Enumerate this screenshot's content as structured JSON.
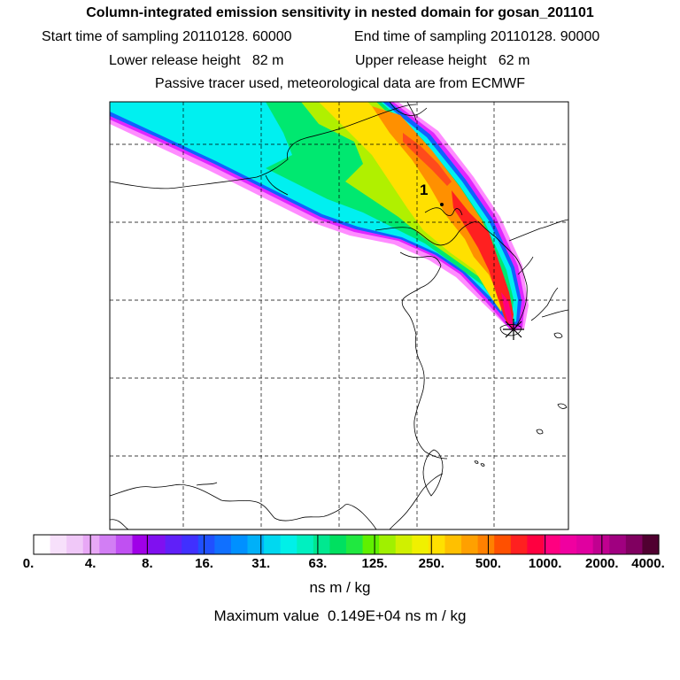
{
  "header": {
    "title": "Column-integrated emission sensitivity in nested domain for gosan_201101",
    "start_label": "Start time of sampling 20110128. 60000",
    "end_label": "End time of sampling 20110128. 90000",
    "lower_label": "Lower release height   82 m",
    "upper_label": "Upper release height   62 m",
    "tracer_line": "Passive tracer used, meteorological data are from ECMWF"
  },
  "chart_data": {
    "type": "heatmap",
    "plot_kind": "map with footprint contours",
    "grid": true,
    "marker_label": "1",
    "colorbar": {
      "tick_labels": [
        "0.",
        "4.",
        "8.",
        "16.",
        "31.",
        "63.",
        "125.",
        "250.",
        "500.",
        "1000.",
        "2000.",
        "4000."
      ],
      "colors": [
        "#ffffff",
        "#f7e0fb",
        "#f0c8f8",
        "#e8a8f6",
        "#d27ef4",
        "#c050f2",
        "#a000e8",
        "#8010f0",
        "#6020f8",
        "#4030ff",
        "#2050ff",
        "#1070ff",
        "#0090ff",
        "#00b0f8",
        "#00d8f0",
        "#00f0e8",
        "#00f0c0",
        "#00e890",
        "#00e060",
        "#20e840",
        "#60f000",
        "#a0f000",
        "#d0f000",
        "#f0f000",
        "#ffe000",
        "#ffc000",
        "#ffa000",
        "#ff8000",
        "#ff5000",
        "#ff2020",
        "#ff0040",
        "#ff0080",
        "#f000a0",
        "#e000a0",
        "#c00090",
        "#a00080",
        "#800060",
        "#500030"
      ],
      "units": "ns m / kg"
    },
    "max_value_text": "Maximum value  0.149E+04 ns m / kg"
  }
}
